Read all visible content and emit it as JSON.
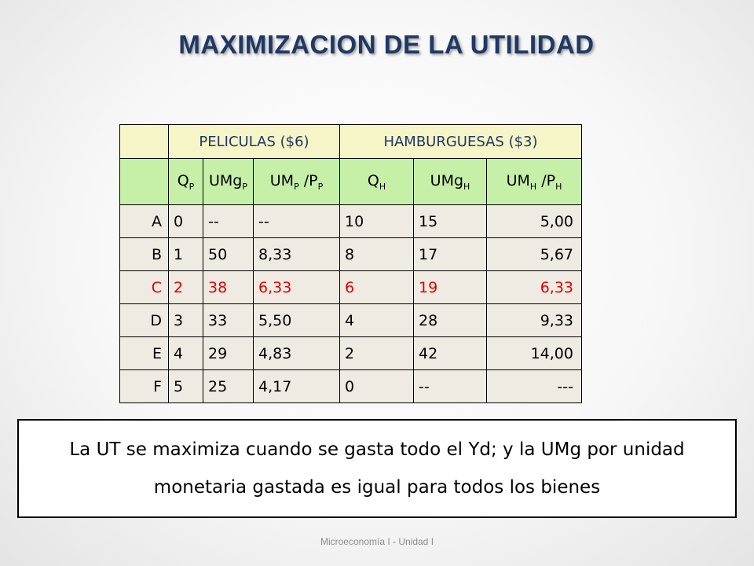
{
  "slide": {
    "title": "MAXIMIZACION DE LA UTILIDAD",
    "footer": "Microeconomía I - Unidad I",
    "note": "La UT se maximiza cuando se gasta todo el Yd; y la UMg por unidad monetaria gastada es igual para todos los bienes"
  },
  "table": {
    "groups": {
      "peliculas": "PELICULAS ($6)",
      "hamburguesas": "HAMBURGUESAS ($3)"
    },
    "subheaders": {
      "qp": {
        "base": "Q",
        "sub": "P"
      },
      "umgp": {
        "base": "UMg",
        "sub": "P"
      },
      "ump_pp": {
        "base1": "UM",
        "sub1": "P",
        "mid": " /P",
        "sub2": "P"
      },
      "qh": {
        "base": "Q",
        "sub": "H"
      },
      "umgh": {
        "base": "UMg",
        "sub": "H"
      },
      "umh_ph": {
        "base1": "UM",
        "sub1": "H",
        "mid": " /P",
        "sub2": "H"
      }
    },
    "rows": [
      {
        "label": "A",
        "qp": "0",
        "umgp": "--",
        "ump": "--",
        "qh": "10",
        "umgh": "15",
        "umh": "5,00"
      },
      {
        "label": "B",
        "qp": "1",
        "umgp": "50",
        "ump": "8,33",
        "qh": "8",
        "umgh": "17",
        "umh": "5,67"
      },
      {
        "label": "C",
        "qp": "2",
        "umgp": "38",
        "ump": "6,33",
        "qh": "6",
        "umgh": "19",
        "umh": "6,33"
      },
      {
        "label": "D",
        "qp": "3",
        "umgp": "33",
        "ump": "5,50",
        "qh": "4",
        "umgh": "28",
        "umh": "9,33"
      },
      {
        "label": "E",
        "qp": "4",
        "umgp": "29",
        "ump": "4,83",
        "qh": "2",
        "umgh": "42",
        "umh": "14,00"
      },
      {
        "label": "F",
        "qp": "5",
        "umgp": "25",
        "ump": "4,17",
        "qh": "0",
        "umgh": "--",
        "umh": "---"
      }
    ],
    "highlight_color": "#e00000"
  }
}
